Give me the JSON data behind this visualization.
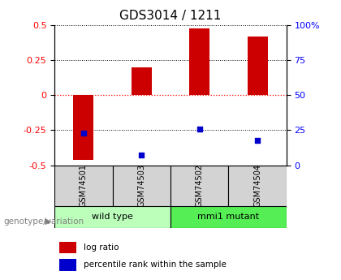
{
  "title": "GDS3014 / 1211",
  "samples": [
    "GSM74501",
    "GSM74503",
    "GSM74502",
    "GSM74504"
  ],
  "log_ratios": [
    -0.46,
    0.2,
    0.48,
    0.42
  ],
  "percentile_ranks": [
    0.23,
    0.07,
    0.26,
    0.18
  ],
  "groups": [
    {
      "label": "wild type",
      "indices": [
        0,
        1
      ],
      "color": "#bbffbb"
    },
    {
      "label": "mmi1 mutant",
      "indices": [
        2,
        3
      ],
      "color": "#55ee55"
    }
  ],
  "ylim": [
    -0.5,
    0.5
  ],
  "yticks_left": [
    -0.5,
    -0.25,
    0,
    0.25,
    0.5
  ],
  "bar_color": "#cc0000",
  "dot_color": "#0000cc",
  "bar_width": 0.35,
  "plot_bg_color": "#ffffff",
  "title_fontsize": 11,
  "tick_fontsize": 8,
  "genotype_label": "genotype/variation",
  "legend_items": [
    "log ratio",
    "percentile rank within the sample"
  ]
}
